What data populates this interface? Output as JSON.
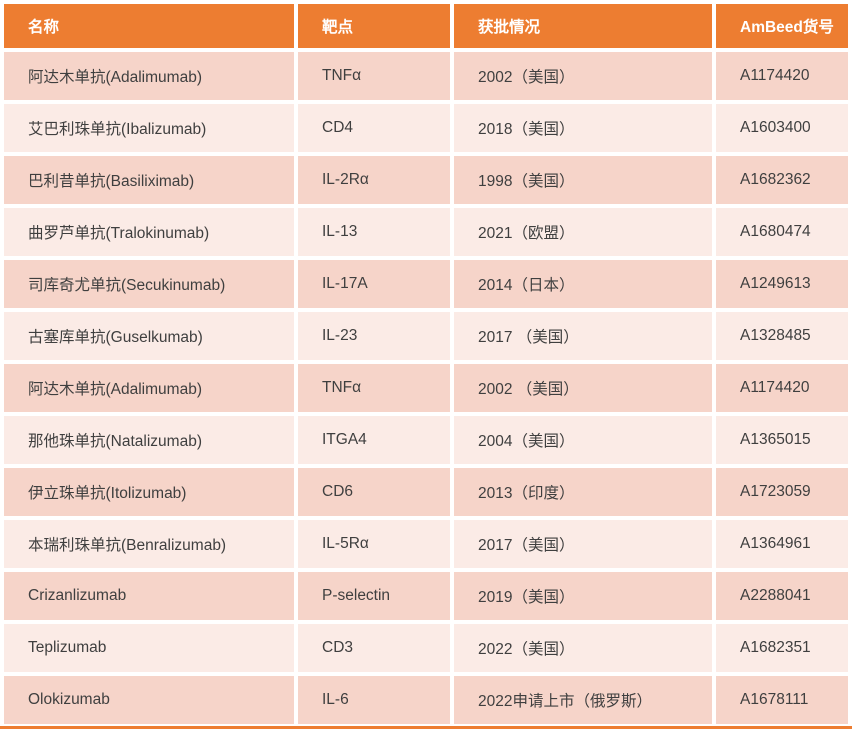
{
  "colors": {
    "header_bg": "#ED7D31",
    "row_dark": "#F6D4C9",
    "row_light": "#FBEBE6",
    "text": "#3F3F3F",
    "header_text": "#FFFFFF",
    "bottom_border": "#ED7D31"
  },
  "table": {
    "columns": [
      {
        "label": "名称"
      },
      {
        "label": "靶点"
      },
      {
        "label": "获批情况"
      },
      {
        "label": "AmBeed货号"
      }
    ],
    "rows": [
      {
        "name": "阿达木单抗(Adalimumab)",
        "target": "TNFα",
        "approval": "2002（美国）",
        "sku": "A1174420"
      },
      {
        "name": "艾巴利珠单抗(Ibalizumab)",
        "target": "CD4",
        "approval": "2018（美国）",
        "sku": "A1603400"
      },
      {
        "name": "巴利昔单抗(Basiliximab)",
        "target": "IL-2Rα",
        "approval": "1998（美国）",
        "sku": "A1682362"
      },
      {
        "name": "曲罗芦单抗(Tralokinumab)",
        "target": "IL-13",
        "approval": "2021（欧盟）",
        "sku": "A1680474"
      },
      {
        "name": "司库奇尤单抗(Secukinumab)",
        "target": "IL-17A",
        "approval": "2014（日本）",
        "sku": "A1249613"
      },
      {
        "name": "古塞库单抗(Guselkumab)",
        "target": "IL-23",
        "approval": "2017 （美国）",
        "sku": "A1328485"
      },
      {
        "name": "阿达木单抗(Adalimumab)",
        "target": "TNFα",
        "approval": "2002 （美国）",
        "sku": "A1174420"
      },
      {
        "name": "那他珠单抗(Natalizumab)",
        "target": "ITGA4",
        "approval": "2004（美国）",
        "sku": "A1365015"
      },
      {
        "name": "伊立珠单抗(Itolizumab)",
        "target": "CD6",
        "approval": "2013（印度）",
        "sku": "A1723059"
      },
      {
        "name": "本瑞利珠单抗(Benralizumab)",
        "target": "IL-5Rα",
        "approval": "2017（美国）",
        "sku": "A1364961"
      },
      {
        "name": "Crizanlizumab",
        "target": "P-selectin",
        "approval": "2019（美国）",
        "sku": "A2288041"
      },
      {
        "name": "Teplizumab",
        "target": "CD3",
        "approval": "2022（美国）",
        "sku": "A1682351"
      },
      {
        "name": "Olokizumab",
        "target": "IL-6",
        "approval": "2022申请上市（俄罗斯）",
        "sku": "A1678111"
      }
    ]
  }
}
